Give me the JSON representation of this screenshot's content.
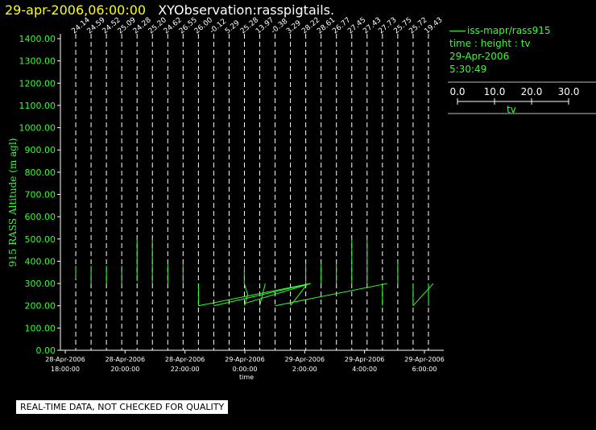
{
  "title": {
    "date": "29-apr-2006,06:00:00",
    "observation": "XYObservation:rasspigtails."
  },
  "colors": {
    "background": "#000000",
    "data": "#33ff33",
    "axes": "#ffffff",
    "title_date": "#ffff00"
  },
  "legend": {
    "entry": "iss-mapr/rass915",
    "subtitle": "time : height : tv",
    "date": "29-Apr-2006",
    "time": "5:30:49",
    "scale_ticks": [
      "0.0",
      "10.0",
      "20.0",
      "30.0"
    ],
    "scale_label": "tv"
  },
  "notice": "REAL-TIME DATA, NOT CHECKED FOR QUALITY",
  "chart_data": {
    "type": "line",
    "ylabel": "915 RASS Altitude (m agl)",
    "xlabel": "time",
    "ylim": [
      0,
      1400
    ],
    "yticks": [
      "1400.00",
      "1300.00",
      "1200.00",
      "1100.00",
      "1000.00",
      "900.00",
      "800.00",
      "700.00",
      "600.00",
      "500.00",
      "400.00",
      "300.00",
      "200.00",
      "100.00",
      "0.00"
    ],
    "xticks": [
      {
        "date": "28-Apr-2006",
        "time": "18:00:00"
      },
      {
        "date": "28-Apr-2006",
        "time": "20:00:00"
      },
      {
        "date": "28-Apr-2006",
        "time": "22:00:00"
      },
      {
        "date": "29-Apr-2006",
        "time": "0:00:00"
      },
      {
        "date": "29-Apr-2006",
        "time": "2:00:00"
      },
      {
        "date": "29-Apr-2006",
        "time": "4:00:00"
      },
      {
        "date": "29-Apr-2006",
        "time": "6:00:00"
      }
    ],
    "profiles": [
      {
        "time": "18:30",
        "label": "24.14",
        "points": [
          [
            380,
            0
          ],
          [
            320,
            0
          ]
        ]
      },
      {
        "time": "19:00",
        "label": "24.59",
        "points": [
          [
            380,
            0
          ],
          [
            300,
            0
          ]
        ]
      },
      {
        "time": "19:30",
        "label": "24.52",
        "points": [
          [
            380,
            0
          ],
          [
            300,
            0
          ]
        ]
      },
      {
        "time": "20:00",
        "label": "25.09",
        "points": [
          [
            380,
            0
          ],
          [
            300,
            0
          ]
        ]
      },
      {
        "time": "20:30",
        "label": "24.28",
        "points": [
          [
            500,
            0
          ],
          [
            390,
            0
          ],
          [
            310,
            0
          ]
        ]
      },
      {
        "time": "21:00",
        "label": "25.20",
        "points": [
          [
            500,
            0
          ],
          [
            390,
            0
          ],
          [
            300,
            0
          ]
        ]
      },
      {
        "time": "21:30",
        "label": "24.62",
        "points": [
          [
            390,
            0
          ],
          [
            300,
            0
          ]
        ]
      },
      {
        "time": "22:00",
        "label": "26.55",
        "points": [
          [
            390,
            0
          ],
          [
            300,
            0
          ]
        ]
      },
      {
        "time": "22:30",
        "label": "26.00",
        "points": [
          [
            300,
            0
          ],
          [
            200,
            0
          ]
        ]
      },
      {
        "time": "23:00",
        "label": "-0.12",
        "points": [
          [
            200,
            6.3
          ]
        ]
      },
      {
        "time": "23:30",
        "label": "5.29",
        "points": [
          [
            200,
            6.3
          ]
        ]
      },
      {
        "time": "0:00",
        "label": "25.28",
        "points": [
          [
            380,
            0
          ],
          [
            350,
            -0.1
          ],
          [
            300,
            -0.1
          ],
          [
            250,
            2.6
          ],
          [
            200,
            0
          ]
        ]
      },
      {
        "time": "0:30",
        "label": "13.97",
        "points": [
          [
            300,
            4.3
          ],
          [
            200,
            0
          ]
        ]
      },
      {
        "time": "1:00",
        "label": "-0.38",
        "points": [
          [
            200,
            0
          ]
        ]
      },
      {
        "time": "1:30",
        "label": "3.29",
        "points": [
          [
            300,
            13.4
          ],
          [
            200,
            0
          ]
        ]
      },
      {
        "time": "2:00",
        "label": "28.22",
        "points": [
          [
            390,
            0
          ],
          [
            340,
            0
          ],
          [
            300,
            0
          ]
        ]
      },
      {
        "time": "2:30",
        "label": "28.61",
        "points": [
          [
            390,
            0
          ],
          [
            300,
            0
          ]
        ]
      },
      {
        "time": "3:00",
        "label": "26.77",
        "points": [
          [
            390,
            0
          ],
          [
            300,
            0
          ]
        ]
      },
      {
        "time": "3:30",
        "label": "27.45",
        "points": [
          [
            500,
            0
          ],
          [
            390,
            0
          ],
          [
            300,
            0
          ]
        ]
      },
      {
        "time": "4:00",
        "label": "27.43",
        "points": [
          [
            500,
            0
          ],
          [
            400,
            0
          ],
          [
            300,
            0
          ]
        ]
      },
      {
        "time": "4:30",
        "label": "27.73",
        "points": [
          [
            300,
            0
          ],
          [
            200,
            0
          ]
        ]
      },
      {
        "time": "5:00",
        "label": "25.75",
        "points": [
          [
            400,
            0
          ],
          [
            300,
            0
          ]
        ]
      },
      {
        "time": "5:30",
        "label": "25.72",
        "points": [
          [
            300,
            0
          ],
          [
            200,
            0
          ]
        ]
      },
      {
        "time": "6:00",
        "label": "19.43",
        "points": [
          [
            300,
            0
          ],
          [
            200,
            0
          ]
        ]
      }
    ]
  }
}
